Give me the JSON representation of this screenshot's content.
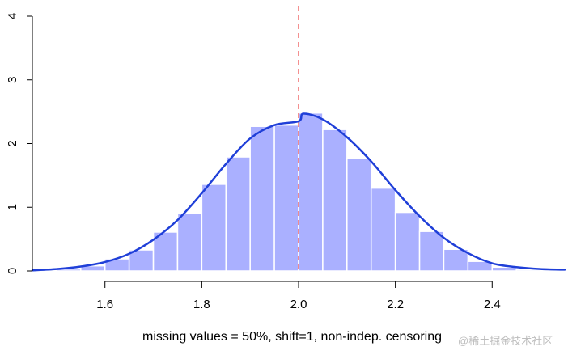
{
  "chart_data": {
    "type": "bar",
    "title": "",
    "xlabel": "missing values = 50%, shift=1, non-indep. censoring",
    "ylabel": "",
    "xlim": [
      1.45,
      2.55
    ],
    "ylim": [
      0,
      4
    ],
    "x_ticks": [
      "1.6",
      "1.8",
      "2.0",
      "2.2",
      "2.4"
    ],
    "y_ticks": [
      "0",
      "1",
      "2",
      "3",
      "4"
    ],
    "bin_width": 0.05,
    "bins": [
      {
        "x0": 1.5,
        "x1": 1.55,
        "value": 0.03
      },
      {
        "x0": 1.55,
        "x1": 1.6,
        "value": 0.08
      },
      {
        "x0": 1.6,
        "x1": 1.65,
        "value": 0.19
      },
      {
        "x0": 1.65,
        "x1": 1.7,
        "value": 0.33
      },
      {
        "x0": 1.7,
        "x1": 1.75,
        "value": 0.61
      },
      {
        "x0": 1.75,
        "x1": 1.8,
        "value": 0.9
      },
      {
        "x0": 1.8,
        "x1": 1.85,
        "value": 1.36
      },
      {
        "x0": 1.85,
        "x1": 1.9,
        "value": 1.79
      },
      {
        "x0": 1.9,
        "x1": 1.95,
        "value": 2.27
      },
      {
        "x0": 1.95,
        "x1": 2.0,
        "value": 2.29
      },
      {
        "x0": 2.0,
        "x1": 2.05,
        "value": 2.48
      },
      {
        "x0": 2.05,
        "x1": 2.1,
        "value": 2.22
      },
      {
        "x0": 2.1,
        "x1": 2.15,
        "value": 1.77
      },
      {
        "x0": 2.15,
        "x1": 2.2,
        "value": 1.3
      },
      {
        "x0": 2.2,
        "x1": 2.25,
        "value": 0.92
      },
      {
        "x0": 2.25,
        "x1": 2.3,
        "value": 0.62
      },
      {
        "x0": 2.3,
        "x1": 2.35,
        "value": 0.34
      },
      {
        "x0": 2.35,
        "x1": 2.4,
        "value": 0.15
      },
      {
        "x0": 2.4,
        "x1": 2.45,
        "value": 0.06
      },
      {
        "x0": 2.45,
        "x1": 2.5,
        "value": 0.02
      }
    ],
    "density_curve": [
      {
        "x": 1.45,
        "y": 0.01
      },
      {
        "x": 1.5,
        "y": 0.03
      },
      {
        "x": 1.55,
        "y": 0.07
      },
      {
        "x": 1.6,
        "y": 0.14
      },
      {
        "x": 1.65,
        "y": 0.27
      },
      {
        "x": 1.7,
        "y": 0.49
      },
      {
        "x": 1.75,
        "y": 0.8
      },
      {
        "x": 1.8,
        "y": 1.22
      },
      {
        "x": 1.85,
        "y": 1.68
      },
      {
        "x": 1.9,
        "y": 2.08
      },
      {
        "x": 1.95,
        "y": 2.29
      },
      {
        "x": 2.0,
        "y": 2.35
      },
      {
        "x": 2.01,
        "y": 2.47
      },
      {
        "x": 2.05,
        "y": 2.38
      },
      {
        "x": 2.1,
        "y": 2.1
      },
      {
        "x": 2.15,
        "y": 1.72
      },
      {
        "x": 2.2,
        "y": 1.27
      },
      {
        "x": 2.25,
        "y": 0.86
      },
      {
        "x": 2.3,
        "y": 0.52
      },
      {
        "x": 2.35,
        "y": 0.28
      },
      {
        "x": 2.4,
        "y": 0.12
      },
      {
        "x": 2.45,
        "y": 0.06
      },
      {
        "x": 2.5,
        "y": 0.03
      },
      {
        "x": 2.55,
        "y": 0.02
      }
    ],
    "reference_line": {
      "x": 2.0,
      "style": "dashed"
    },
    "colors": {
      "bars": "#aab0ff",
      "bar_border": "#ffffff",
      "curve": "#1f3fd8",
      "reference_line": "#f06b6b",
      "axis": "#000000"
    },
    "grid": false,
    "legend": "none"
  },
  "watermark": "@稀土掘金技术社区"
}
